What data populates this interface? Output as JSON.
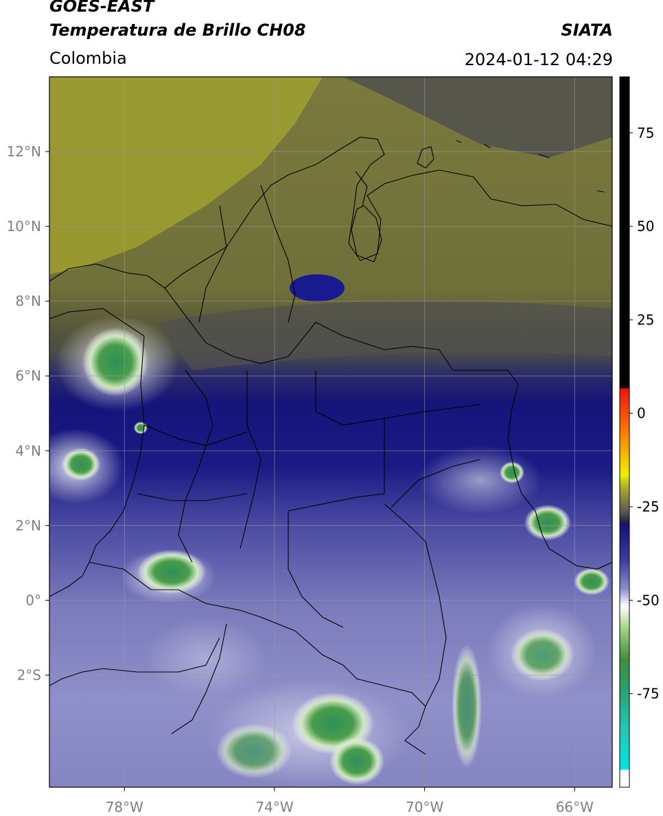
{
  "header": {
    "satellite": "GOES-EAST",
    "product": "Temperatura de Brillo CH08",
    "region": "Colombia",
    "organization": "SIATA",
    "datetime": "2024-01-12 04:29"
  },
  "map": {
    "lon_range": [
      -80,
      -65
    ],
    "lat_range": [
      -5,
      14
    ],
    "lon_ticks": [
      {
        "value": -78,
        "label": "78°W"
      },
      {
        "value": -74,
        "label": "74°W"
      },
      {
        "value": -70,
        "label": "70°W"
      },
      {
        "value": -66,
        "label": "66°W"
      }
    ],
    "lat_ticks": [
      {
        "value": 12,
        "label": "12°N"
      },
      {
        "value": 10,
        "label": "10°N"
      },
      {
        "value": 8,
        "label": "8°N"
      },
      {
        "value": 6,
        "label": "6°N"
      },
      {
        "value": 4,
        "label": "4°N"
      },
      {
        "value": 2,
        "label": "2°N"
      },
      {
        "value": 0,
        "label": "0°"
      },
      {
        "value": -2,
        "label": "2°S"
      }
    ],
    "gridlines": true,
    "colors": {
      "warm_band": "#6f6f3a",
      "north_yellow": "#a9a92c",
      "grey": "#4d4d4d",
      "navy": "#15157a",
      "lavender": "#9a9ad0",
      "white": "#ffffff",
      "green": "#3f8f3f",
      "teal": "#2f9f7f"
    }
  },
  "colorbar": {
    "range": [
      -100,
      90
    ],
    "ticks": [
      {
        "value": 75,
        "label": "75"
      },
      {
        "value": 50,
        "label": "50"
      },
      {
        "value": 25,
        "label": "25"
      },
      {
        "value": 0,
        "label": "0"
      },
      {
        "value": -25,
        "label": "-25"
      },
      {
        "value": -50,
        "label": "-50"
      },
      {
        "value": -75,
        "label": "-75"
      }
    ]
  }
}
